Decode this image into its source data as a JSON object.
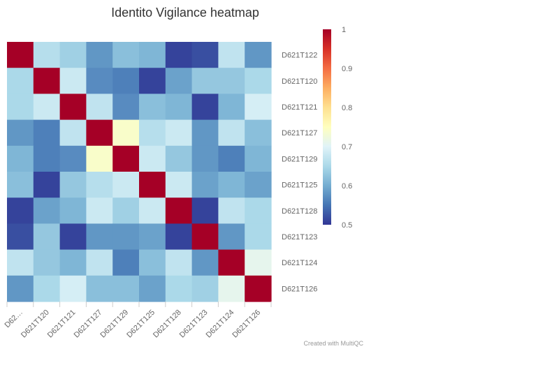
{
  "chart_data": {
    "type": "heatmap",
    "title": "Identito Vigilance heatmap",
    "y_labels": [
      "D621T122",
      "D621T120",
      "D621T121",
      "D621T127",
      "D621T129",
      "D621T125",
      "D621T128",
      "D621T123",
      "D621T124",
      "D621T126"
    ],
    "x_labels": [
      "D62…",
      "D621T120",
      "D621T121",
      "D621T127",
      "D621T129",
      "D621T125",
      "D621T128",
      "D621T123",
      "D621T124",
      "D621T126"
    ],
    "values": [
      [
        1.0,
        0.66,
        0.64,
        0.58,
        0.62,
        0.61,
        0.51,
        0.52,
        0.67,
        0.58
      ],
      [
        0.65,
        1.0,
        0.68,
        0.57,
        0.56,
        0.51,
        0.59,
        0.63,
        0.63,
        0.65
      ],
      [
        0.65,
        0.68,
        1.0,
        0.67,
        0.57,
        0.62,
        0.61,
        0.51,
        0.61,
        0.69
      ],
      [
        0.58,
        0.56,
        0.67,
        1.0,
        0.74,
        0.66,
        0.68,
        0.58,
        0.67,
        0.62
      ],
      [
        0.61,
        0.56,
        0.57,
        0.74,
        1.0,
        0.68,
        0.63,
        0.58,
        0.56,
        0.61
      ],
      [
        0.62,
        0.51,
        0.63,
        0.66,
        0.68,
        1.0,
        0.68,
        0.59,
        0.61,
        0.59
      ],
      [
        0.51,
        0.59,
        0.61,
        0.68,
        0.64,
        0.68,
        1.0,
        0.51,
        0.67,
        0.65
      ],
      [
        0.52,
        0.63,
        0.51,
        0.58,
        0.58,
        0.59,
        0.51,
        1.0,
        0.58,
        0.65
      ],
      [
        0.67,
        0.63,
        0.61,
        0.67,
        0.56,
        0.62,
        0.67,
        0.58,
        1.0,
        0.71
      ],
      [
        0.58,
        0.65,
        0.69,
        0.62,
        0.62,
        0.59,
        0.65,
        0.64,
        0.71,
        1.0
      ]
    ],
    "colorbar": {
      "min": 0.5,
      "max": 1,
      "ticks": [
        "1",
        "0.9",
        "0.8",
        "0.7",
        "0.6",
        "0.5"
      ]
    },
    "colorscale": [
      "#313695",
      "#4575b4",
      "#74add1",
      "#abd9e9",
      "#e0f3f8",
      "#ffffbf",
      "#fee090",
      "#fdae61",
      "#f46d43",
      "#d73027",
      "#a50026"
    ],
    "credit": "Created with MultiQC"
  }
}
